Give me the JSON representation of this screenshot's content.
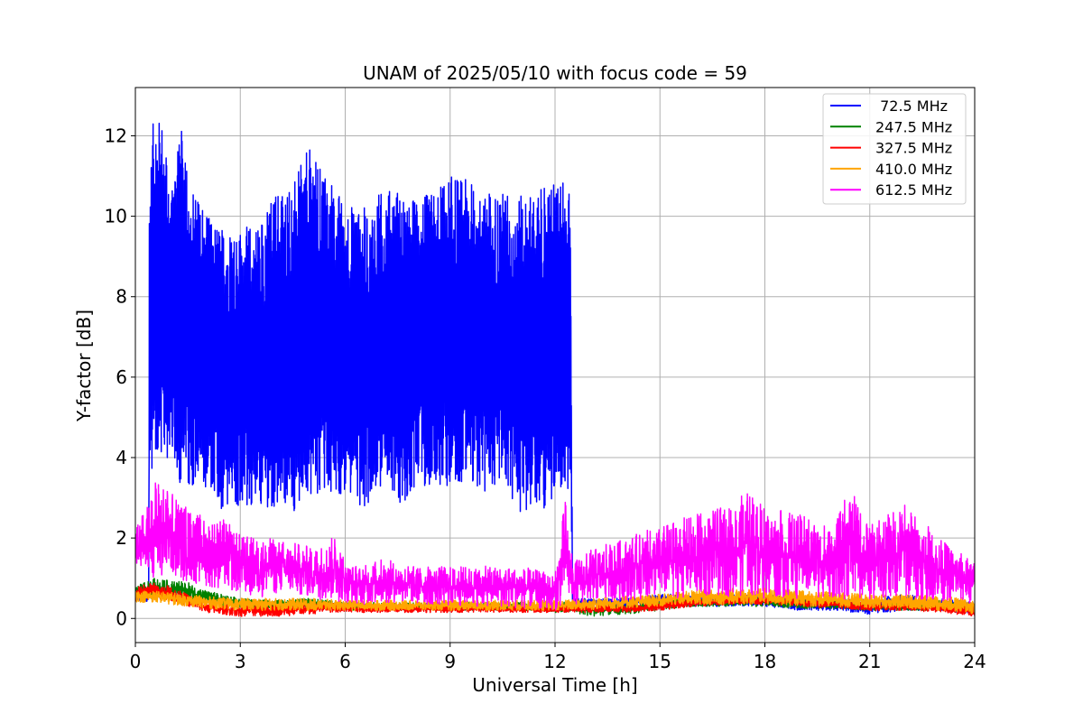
{
  "chart_data": {
    "type": "line",
    "title": "UNAM of 2025/05/10 with focus code = 59",
    "xlabel": "Universal Time [h]",
    "ylabel": "Y-factor [dB]",
    "xlim": [
      0,
      24
    ],
    "ylim": [
      -0.6,
      13.2
    ],
    "xticks": [
      0,
      3,
      6,
      9,
      12,
      15,
      18,
      21,
      24
    ],
    "yticks": [
      0,
      2,
      4,
      6,
      8,
      10,
      12
    ],
    "grid": true,
    "legend_position": "top-right",
    "series": [
      {
        "name": " 72.5 MHz",
        "color": "#0000ff",
        "x": [
          0.0,
          0.38,
          0.4,
          0.45,
          0.5,
          0.6,
          0.75,
          0.9,
          1.0,
          1.1,
          1.2,
          1.3,
          1.5,
          1.7,
          2.0,
          2.2,
          2.5,
          3.0,
          3.5,
          4.0,
          4.5,
          4.9,
          5.0,
          5.2,
          5.5,
          5.8,
          6.0,
          6.5,
          7.0,
          7.5,
          8.0,
          8.5,
          8.9,
          9.0,
          9.5,
          10.0,
          10.5,
          11.0,
          11.5,
          11.8,
          12.0,
          12.2,
          12.4,
          12.45,
          12.5,
          13.0,
          14.0,
          15.0,
          16.0,
          17.0,
          18.0,
          19.0,
          20.0,
          21.0,
          22.0,
          23.0,
          24.0
        ],
        "upper": [
          0.6,
          0.6,
          10.5,
          12.2,
          12.3,
          12.4,
          12.4,
          11.5,
          10.5,
          11.5,
          12.5,
          12.2,
          11.5,
          10.5,
          10.3,
          9.9,
          9.7,
          9.7,
          9.8,
          10.6,
          10.8,
          11.6,
          11.7,
          11.3,
          11.0,
          10.6,
          10.3,
          10.2,
          10.6,
          10.7,
          10.4,
          10.6,
          10.9,
          11.0,
          10.9,
          10.6,
          10.6,
          10.5,
          10.6,
          10.8,
          10.9,
          10.9,
          10.8,
          9.5,
          0.5,
          0.5,
          0.5,
          0.6,
          0.6,
          0.6,
          0.6,
          0.5,
          0.5,
          0.5,
          0.6,
          0.5,
          0.4
        ],
        "lower": [
          0.4,
          0.4,
          4.2,
          3.0,
          4.0,
          3.2,
          3.5,
          3.9,
          4.2,
          3.4,
          3.7,
          3.2,
          3.1,
          3.3,
          3.0,
          3.3,
          2.5,
          2.8,
          2.7,
          2.7,
          2.6,
          3.0,
          3.1,
          3.0,
          3.0,
          3.0,
          3.1,
          2.7,
          3.2,
          2.7,
          3.2,
          3.3,
          3.2,
          3.2,
          3.4,
          3.1,
          3.3,
          2.5,
          2.8,
          2.7,
          3.1,
          3.3,
          3.0,
          3.3,
          0.3,
          0.3,
          0.3,
          0.3,
          0.3,
          0.3,
          0.3,
          0.2,
          0.2,
          0.1,
          0.2,
          0.2,
          0.1
        ]
      },
      {
        "name": "247.5 MHz",
        "color": "#008000",
        "x": [
          0.0,
          0.5,
          1.0,
          1.5,
          2.0,
          3.0,
          4.0,
          5.0,
          6.0,
          7.0,
          8.0,
          9.0,
          10.0,
          11.0,
          12.0,
          12.5,
          13.0,
          14.0,
          15.0,
          16.0,
          17.0,
          18.0,
          19.0,
          20.0,
          21.0,
          22.0,
          23.0,
          24.0
        ],
        "upper": [
          0.8,
          1.0,
          0.95,
          0.9,
          0.7,
          0.5,
          0.45,
          0.5,
          0.4,
          0.4,
          0.4,
          0.4,
          0.4,
          0.4,
          0.4,
          0.4,
          0.35,
          0.35,
          0.45,
          0.55,
          0.55,
          0.55,
          0.5,
          0.5,
          0.4,
          0.4,
          0.45,
          0.35
        ],
        "lower": [
          0.5,
          0.5,
          0.5,
          0.45,
          0.35,
          0.25,
          0.25,
          0.25,
          0.2,
          0.2,
          0.2,
          0.2,
          0.2,
          0.2,
          0.15,
          0.15,
          0.05,
          0.1,
          0.2,
          0.3,
          0.3,
          0.3,
          0.25,
          0.25,
          0.2,
          0.2,
          0.2,
          0.15
        ]
      },
      {
        "name": "327.5 MHz",
        "color": "#ff0000",
        "x": [
          0.0,
          0.5,
          1.0,
          1.5,
          2.0,
          2.5,
          3.0,
          4.0,
          5.0,
          5.5,
          6.0,
          7.0,
          8.0,
          9.0,
          10.0,
          11.0,
          12.0,
          13.0,
          14.0,
          15.0,
          16.0,
          17.0,
          18.0,
          19.0,
          20.0,
          21.0,
          22.0,
          23.0,
          24.0
        ],
        "upper": [
          0.8,
          0.9,
          0.8,
          0.6,
          0.4,
          0.35,
          0.35,
          0.35,
          0.35,
          0.4,
          0.35,
          0.35,
          0.35,
          0.35,
          0.35,
          0.35,
          0.3,
          0.35,
          0.35,
          0.4,
          0.5,
          0.55,
          0.55,
          0.5,
          0.45,
          0.4,
          0.4,
          0.35,
          0.3
        ],
        "lower": [
          0.4,
          0.5,
          0.45,
          0.3,
          0.15,
          0.1,
          0.05,
          0.05,
          0.1,
          0.15,
          0.15,
          0.15,
          0.15,
          0.15,
          0.15,
          0.15,
          0.15,
          0.15,
          0.15,
          0.2,
          0.3,
          0.35,
          0.35,
          0.3,
          0.25,
          0.2,
          0.2,
          0.15,
          0.05
        ]
      },
      {
        "name": "410.0 MHz",
        "color": "#ffa500",
        "x": [
          0.0,
          0.5,
          1.0,
          1.5,
          2.0,
          3.0,
          4.0,
          5.0,
          6.0,
          7.0,
          8.0,
          9.0,
          10.0,
          11.0,
          12.0,
          13.0,
          14.0,
          15.0,
          16.0,
          17.0,
          18.0,
          19.0,
          20.0,
          21.0,
          22.0,
          23.0,
          24.0
        ],
        "upper": [
          0.7,
          0.7,
          0.65,
          0.6,
          0.55,
          0.5,
          0.5,
          0.5,
          0.45,
          0.45,
          0.45,
          0.45,
          0.45,
          0.45,
          0.45,
          0.5,
          0.55,
          0.6,
          0.7,
          0.75,
          0.75,
          0.7,
          0.65,
          0.6,
          0.6,
          0.55,
          0.5
        ],
        "lower": [
          0.4,
          0.4,
          0.35,
          0.3,
          0.25,
          0.2,
          0.2,
          0.2,
          0.2,
          0.2,
          0.2,
          0.2,
          0.2,
          0.2,
          0.2,
          0.2,
          0.25,
          0.3,
          0.35,
          0.35,
          0.35,
          0.3,
          0.3,
          0.25,
          0.25,
          0.2,
          0.1
        ]
      },
      {
        "name": "612.5 MHz",
        "color": "#ff00ff",
        "x": [
          0.0,
          0.4,
          0.6,
          1.0,
          1.5,
          2.0,
          2.5,
          3.0,
          3.5,
          4.0,
          4.5,
          5.0,
          5.5,
          5.8,
          6.0,
          6.5,
          7.0,
          7.5,
          8.0,
          9.0,
          10.0,
          11.0,
          12.0,
          12.3,
          12.5,
          13.0,
          14.0,
          15.0,
          16.0,
          17.0,
          17.5,
          18.0,
          19.0,
          20.0,
          20.4,
          21.0,
          21.5,
          22.0,
          23.0,
          24.0
        ],
        "upper": [
          2.3,
          2.9,
          3.6,
          3.2,
          2.8,
          2.5,
          2.5,
          2.1,
          2.0,
          2.0,
          1.9,
          1.8,
          1.9,
          2.2,
          1.4,
          1.3,
          1.5,
          1.4,
          1.3,
          1.3,
          1.3,
          1.3,
          1.1,
          3.1,
          1.4,
          1.7,
          2.0,
          2.3,
          2.6,
          2.8,
          3.2,
          2.8,
          2.6,
          2.3,
          3.3,
          2.3,
          2.6,
          2.9,
          2.0,
          1.4
        ],
        "lower": [
          1.1,
          1.2,
          0.9,
          1.0,
          0.9,
          0.8,
          0.7,
          0.6,
          0.5,
          0.6,
          0.6,
          0.5,
          0.45,
          0.4,
          0.4,
          0.35,
          0.35,
          0.4,
          0.35,
          0.3,
          0.3,
          0.25,
          0.2,
          0.35,
          0.35,
          0.4,
          0.45,
          0.5,
          0.5,
          0.55,
          0.55,
          0.5,
          0.5,
          0.5,
          0.45,
          0.45,
          0.5,
          0.5,
          0.45,
          0.35
        ]
      }
    ]
  }
}
